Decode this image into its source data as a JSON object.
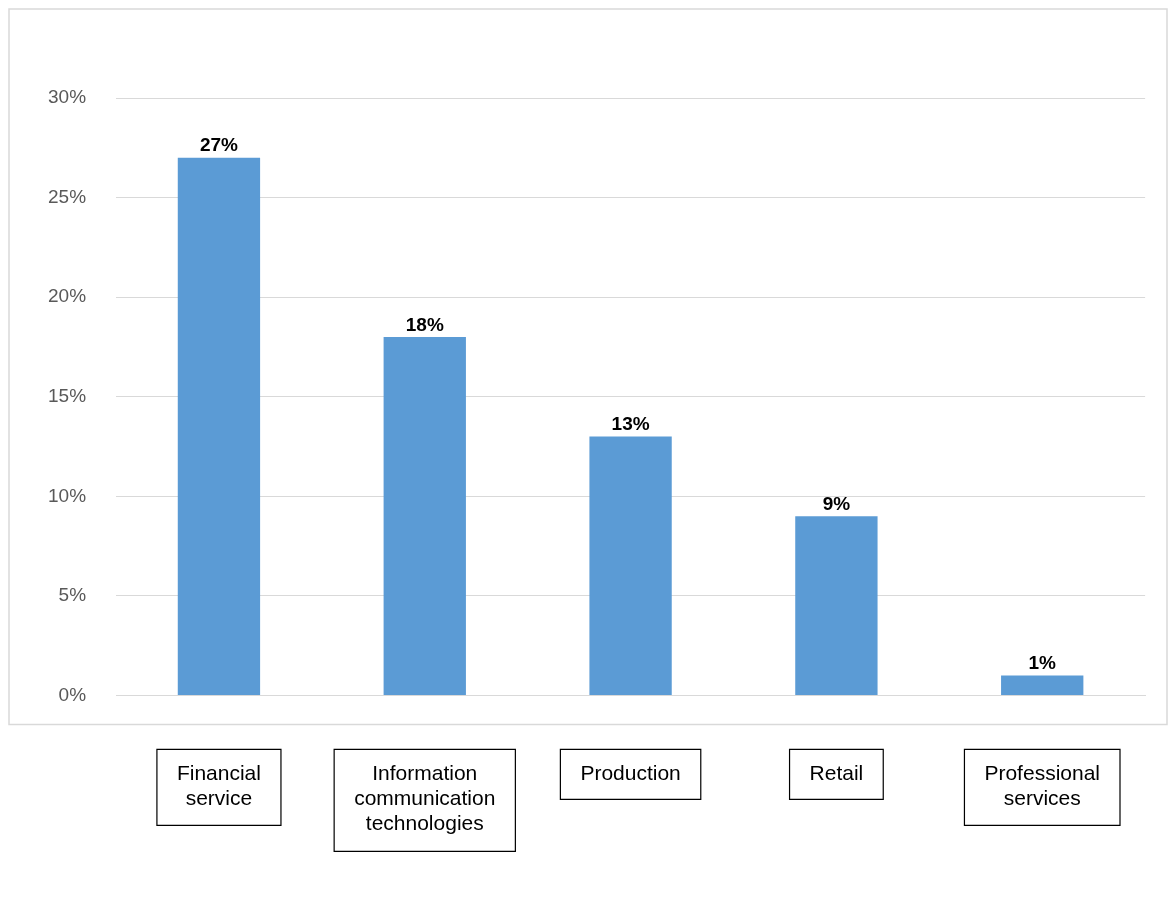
{
  "chart_data": {
    "type": "bar",
    "categories": [
      "Financial service",
      "Information communication technologies",
      "Production",
      "Retail",
      "Professional services"
    ],
    "values": [
      27,
      18,
      13,
      9,
      1
    ],
    "color": "#5b9bd5",
    "value_labels": [
      "27%",
      "18%",
      "13%",
      "9%",
      "1%"
    ],
    "ylim": [
      0,
      30
    ],
    "yticks": [
      {
        "value": 0,
        "label": "0%"
      },
      {
        "value": 5,
        "label": "5%"
      },
      {
        "value": 10,
        "label": "10%"
      },
      {
        "value": 15,
        "label": "15%"
      },
      {
        "value": 20,
        "label": "20%"
      },
      {
        "value": 25,
        "label": "25%"
      },
      {
        "value": 30,
        "label": "30%"
      }
    ],
    "grid": "y",
    "legend": false
  }
}
